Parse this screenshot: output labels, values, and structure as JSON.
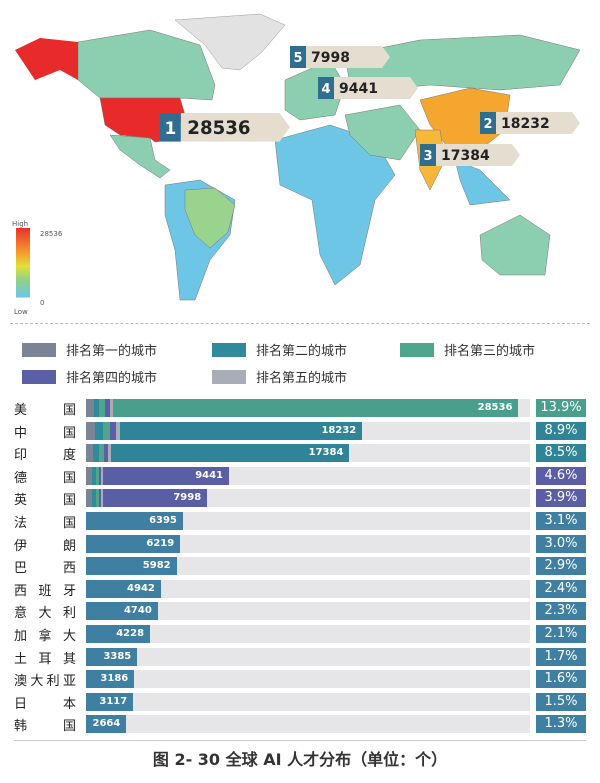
{
  "map": {
    "legend": {
      "high": "High",
      "low": "Low",
      "max": "28536",
      "min": "0"
    },
    "callouts": [
      {
        "rank": "1",
        "value": "28536"
      },
      {
        "rank": "2",
        "value": "18232"
      },
      {
        "rank": "3",
        "value": "17384"
      },
      {
        "rank": "4",
        "value": "9441"
      },
      {
        "rank": "5",
        "value": "7998"
      }
    ]
  },
  "legend": [
    {
      "label": "排名第一的城市",
      "color": "#7a8494"
    },
    {
      "label": "排名第二的城市",
      "color": "#2f8a9c"
    },
    {
      "label": "排名第三的城市",
      "color": "#4ea68c"
    },
    {
      "label": "排名第四的城市",
      "color": "#5a5fa6"
    },
    {
      "label": "排名第五的城市",
      "color": "#a9aeb6"
    }
  ],
  "chart_data": {
    "type": "bar",
    "orientation": "horizontal",
    "title": "图 2- 30  全球 AI 人才分布（单位：个）",
    "categories": [
      "美　国",
      "中　国",
      "印　度",
      "德　国",
      "英　国",
      "法　国",
      "伊　朗",
      "巴　西",
      "西班牙",
      "意大利",
      "加拿大",
      "土耳其",
      "澳大利亚",
      "日　本",
      "韩　国"
    ],
    "values": [
      28536,
      18232,
      17384,
      9441,
      7998,
      6395,
      6219,
      5982,
      4942,
      4740,
      4228,
      3385,
      3186,
      3117,
      2664
    ],
    "percentages": [
      "13.9%",
      "8.9%",
      "8.5%",
      "4.6%",
      "3.9%",
      "3.1%",
      "3.0%",
      "2.9%",
      "2.4%",
      "2.3%",
      "2.1%",
      "1.7%",
      "1.6%",
      "1.5%",
      "1.3%"
    ],
    "bar_colors": [
      "#4a9e8c",
      "#2f8597",
      "#2f8597",
      "#5a5ea5",
      "#5a5ea5",
      "#3f7fa2",
      "#3f7fa2",
      "#3f7fa2",
      "#3f7fa2",
      "#3f7fa2",
      "#3f7fa2",
      "#3f7fa2",
      "#3f7fa2",
      "#3f7fa2",
      "#3f7fa2"
    ],
    "xlim": [
      0,
      29300
    ]
  }
}
